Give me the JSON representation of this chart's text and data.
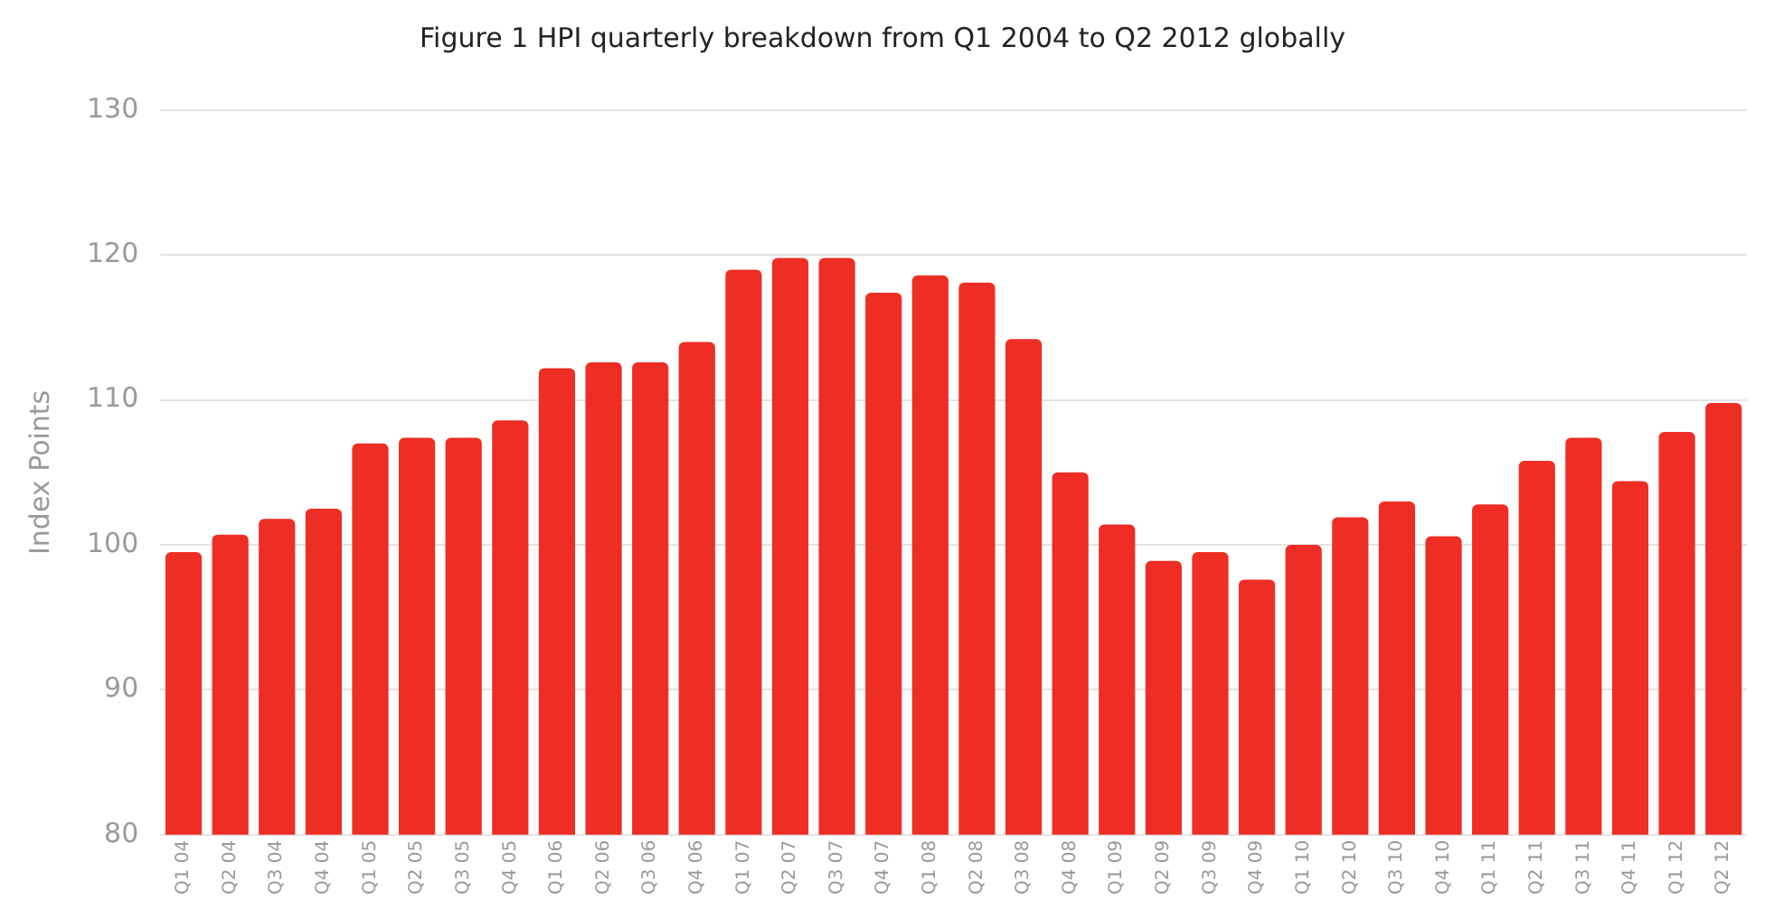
{
  "chart_data": {
    "type": "bar",
    "title": "Figure 1 HPI quarterly breakdown from Q1 2004 to Q2 2012 globally",
    "ylabel": "Index Points",
    "categories": [
      "Q1 04",
      "Q2 04",
      "Q3 04",
      "Q4 04",
      "Q1 05",
      "Q2 05",
      "Q3 05",
      "Q4 05",
      "Q1 06",
      "Q2 06",
      "Q3 06",
      "Q4 06",
      "Q1 07",
      "Q2 07",
      "Q3 07",
      "Q4 07",
      "Q1 08",
      "Q2 08",
      "Q3 08",
      "Q4 08",
      "Q1 09",
      "Q2 09",
      "Q3 09",
      "Q4 09",
      "Q1 10",
      "Q2 10",
      "Q3 10",
      "Q4 10",
      "Q1 11",
      "Q2 11",
      "Q3 11",
      "Q4 11",
      "Q1 12",
      "Q2 12"
    ],
    "values": [
      99.5,
      100.7,
      101.8,
      102.5,
      107,
      107.4,
      107.4,
      108.6,
      112.2,
      112.6,
      112.6,
      114,
      119,
      119.8,
      119.8,
      117.4,
      118.6,
      118.1,
      114.2,
      105,
      101.4,
      98.9,
      99.5,
      97.6,
      100,
      101.9,
      103,
      100.6,
      102.8,
      105.8,
      107.4,
      104.4,
      107.8,
      109.8
    ],
    "color": "#ee2e24",
    "ylim": [
      80,
      130
    ],
    "yticks": [
      80,
      90,
      100,
      110,
      120,
      130
    ],
    "grid": "y"
  }
}
